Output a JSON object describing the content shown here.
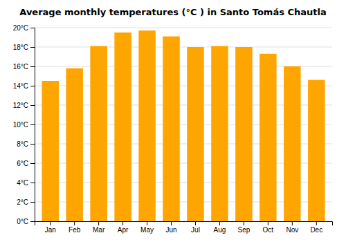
{
  "chart_data": {
    "type": "bar",
    "title": "Average monthly temperatures (°C ) in Santo Tomás Chautla",
    "categories": [
      "Jan",
      "Feb",
      "Mar",
      "Apr",
      "May",
      "Jun",
      "Jul",
      "Aug",
      "Sep",
      "Oct",
      "Nov",
      "Dec"
    ],
    "values": [
      14.5,
      15.8,
      18.1,
      19.5,
      19.7,
      19.1,
      18.0,
      18.1,
      18.0,
      17.3,
      16.0,
      14.6
    ],
    "color": "#FFA500",
    "ylim": [
      0,
      20
    ],
    "yticks": [
      {
        "value": 0,
        "label": "0°C"
      },
      {
        "value": 2,
        "label": "2°C"
      },
      {
        "value": 4,
        "label": "4°C"
      },
      {
        "value": 6,
        "label": "6°C"
      },
      {
        "value": 8,
        "label": "8°C"
      },
      {
        "value": 10,
        "label": "10°C"
      },
      {
        "value": 12,
        "label": "12°C"
      },
      {
        "value": 14,
        "label": "14°C"
      },
      {
        "value": 16,
        "label": "16°C"
      },
      {
        "value": 18,
        "label": "18°C"
      },
      {
        "value": 20,
        "label": "20°C"
      }
    ],
    "grid": true
  }
}
